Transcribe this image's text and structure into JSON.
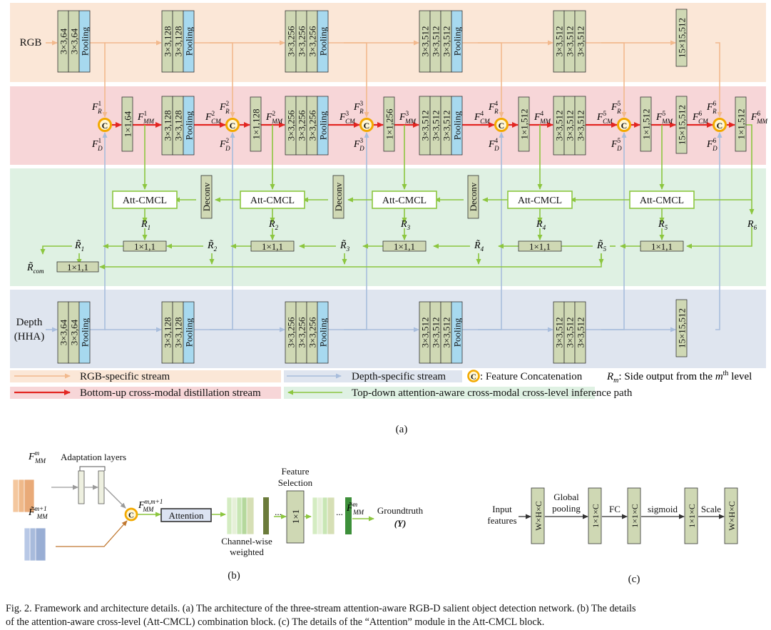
{
  "panel_a": {
    "inputs": {
      "rgb": "RGB",
      "depth_line1": "Depth",
      "depth_line2": "(HHA)"
    },
    "rgb_blocks": [
      [
        "3×3,64",
        "3×3,64",
        "Pooling"
      ],
      [
        "3×3,128",
        "3×3,128",
        "Pooling"
      ],
      [
        "3×3,256",
        "3×3,256",
        "3×3,256",
        "Pooling"
      ],
      [
        "3×3,512",
        "3×3,512",
        "3×3,512",
        "Pooling"
      ],
      [
        "3×3,512",
        "3×3,512",
        "3×3,512"
      ],
      [
        "15×15,512"
      ]
    ],
    "depth_blocks": [
      [
        "3×3,64",
        "3×3,64",
        "Pooling"
      ],
      [
        "3×3,128",
        "3×3,128",
        "Pooling"
      ],
      [
        "3×3,256",
        "3×3,256",
        "3×3,256",
        "Pooling"
      ],
      [
        "3×3,512",
        "3×3,512",
        "3×3,512",
        "Pooling"
      ],
      [
        "3×3,512",
        "3×3,512",
        "3×3,512"
      ],
      [
        "15×15,512"
      ]
    ],
    "cm_blocks": [
      [
        "3×3,128",
        "3×3,128",
        "Pooling"
      ],
      [
        "3×3,256",
        "3×3,256",
        "3×3,256",
        "Pooling"
      ],
      [
        "3×3,512",
        "3×3,512",
        "3×3,512",
        "Pooling"
      ],
      [
        "3×3,512",
        "3×3,512",
        "3×3,512"
      ],
      [
        "15×15,512"
      ]
    ],
    "adapt_blocks": [
      "1×1,64",
      "1×1,128",
      "1×1,256",
      "1×1,512",
      "1×1,512",
      "1×1,512"
    ],
    "concat_symbol": "C",
    "att_cmcl_label": "Att-CMCL",
    "deconv_label": "Deconv",
    "side_conv_label": "1×1,1",
    "combine_conv_label": "1×1,1",
    "labels": {
      "F": "F",
      "R": "R",
      "D": "D",
      "MM": "MM",
      "CM": "CM",
      "R_tilde": "R̃",
      "com": "com",
      "levels": [
        "1",
        "2",
        "3",
        "4",
        "5",
        "6"
      ]
    },
    "legend": {
      "rgb_stream": "RGB-specific stream",
      "depth_stream": "Depth-specific stream",
      "concat_prefix": ": Feature Concatenation",
      "side_output_text": ": Side output from the ",
      "side_output_sup": "th",
      "side_output_suffix": " level",
      "bottom_up": "Bottom-up cross-modal distillation stream",
      "top_down": "Top-down attention-aware cross-modal cross-level inference path",
      "Rm": "R",
      "m": "m"
    },
    "label": "(a)"
  },
  "panel_b": {
    "adaptation_layers": "Adaptation layers",
    "f_mm_m_base": "F",
    "mm": "MM",
    "sup_m": "m",
    "sup_m1": "m+1",
    "sup_mm1": "m,m+1",
    "attention": "Attention",
    "channel_wise_line1": "Channel-wise",
    "channel_wise_line2": "weighted",
    "feature_line1": "Feature",
    "feature_line2": "Selection",
    "one_by_one": "1×1",
    "dots": "...",
    "groundtruth": "Groundtruth",
    "y": "(Y)",
    "label": "(b)"
  },
  "panel_c": {
    "input_line1": "Input",
    "input_line2": "features",
    "whc": "W×H×C",
    "c11": "1×1×C",
    "global_line1": "Global",
    "global_line2": "pooling",
    "fc": "FC",
    "sigmoid": "sigmoid",
    "scale": "Scale",
    "label": "(c)"
  },
  "caption": {
    "line1": "Fig. 2.   Framework and architecture details. (a) The architecture of the three-stream attention-aware RGB-D salient object detection network. (b) The details",
    "line2": "of the attention-aware cross-level (Att-CMCL) combination block. (c) The details of the “Attention” module in the Att-CMCL block."
  },
  "colors": {
    "rgb_band": "#fbe7d7",
    "cm_band": "#f7d6d8",
    "green_band": "#dff1e3",
    "depth_band": "#dfe5ef",
    "conv_box": "#cfd8b4",
    "pool_box": "#a7d9ef",
    "orange_arrow": "#f2b98d",
    "blue_arrow": "#a8bddc",
    "red_arrow": "#e32622",
    "green_arrow": "#8cc63f",
    "concat_ring": "#f2a900"
  }
}
